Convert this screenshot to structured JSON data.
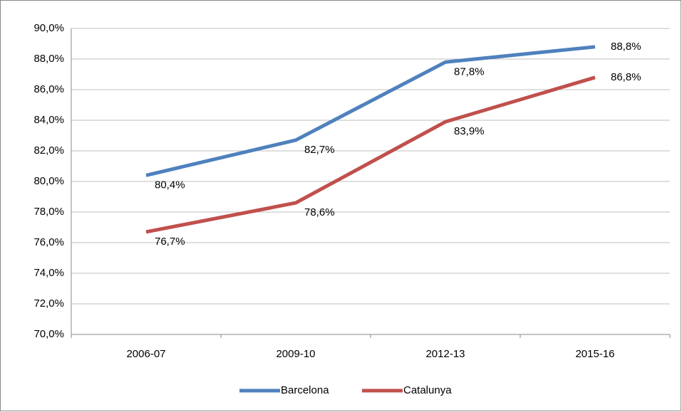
{
  "chart_data": {
    "type": "line",
    "categories": [
      "2006-07",
      "2009-10",
      "2012-13",
      "2015-16"
    ],
    "series": [
      {
        "name": "Barcelona",
        "color": "#4f81bd",
        "values": [
          80.4,
          82.7,
          87.8,
          88.8
        ],
        "value_labels": [
          "80,4%",
          "82,7%",
          "87,8%",
          "88,8%"
        ]
      },
      {
        "name": "Catalunya",
        "color": "#c0504d",
        "values": [
          76.7,
          78.6,
          83.9,
          86.8
        ],
        "value_labels": [
          "76,7%",
          "78,6%",
          "83,9%",
          "86,8%"
        ]
      }
    ],
    "ylim": [
      70,
      90
    ],
    "yticks": [
      {
        "value": 70,
        "label": "70,0%"
      },
      {
        "value": 72,
        "label": "72,0%"
      },
      {
        "value": 74,
        "label": "74,0%"
      },
      {
        "value": 76,
        "label": "76,0%"
      },
      {
        "value": 78,
        "label": "78,0%"
      },
      {
        "value": 80,
        "label": "80,0%"
      },
      {
        "value": 82,
        "label": "82,0%"
      },
      {
        "value": 84,
        "label": "84,0%"
      },
      {
        "value": 86,
        "label": "86,0%"
      },
      {
        "value": 88,
        "label": "88,0%"
      },
      {
        "value": 90,
        "label": "90,0%"
      }
    ],
    "grid": true,
    "legend": "bottom"
  }
}
